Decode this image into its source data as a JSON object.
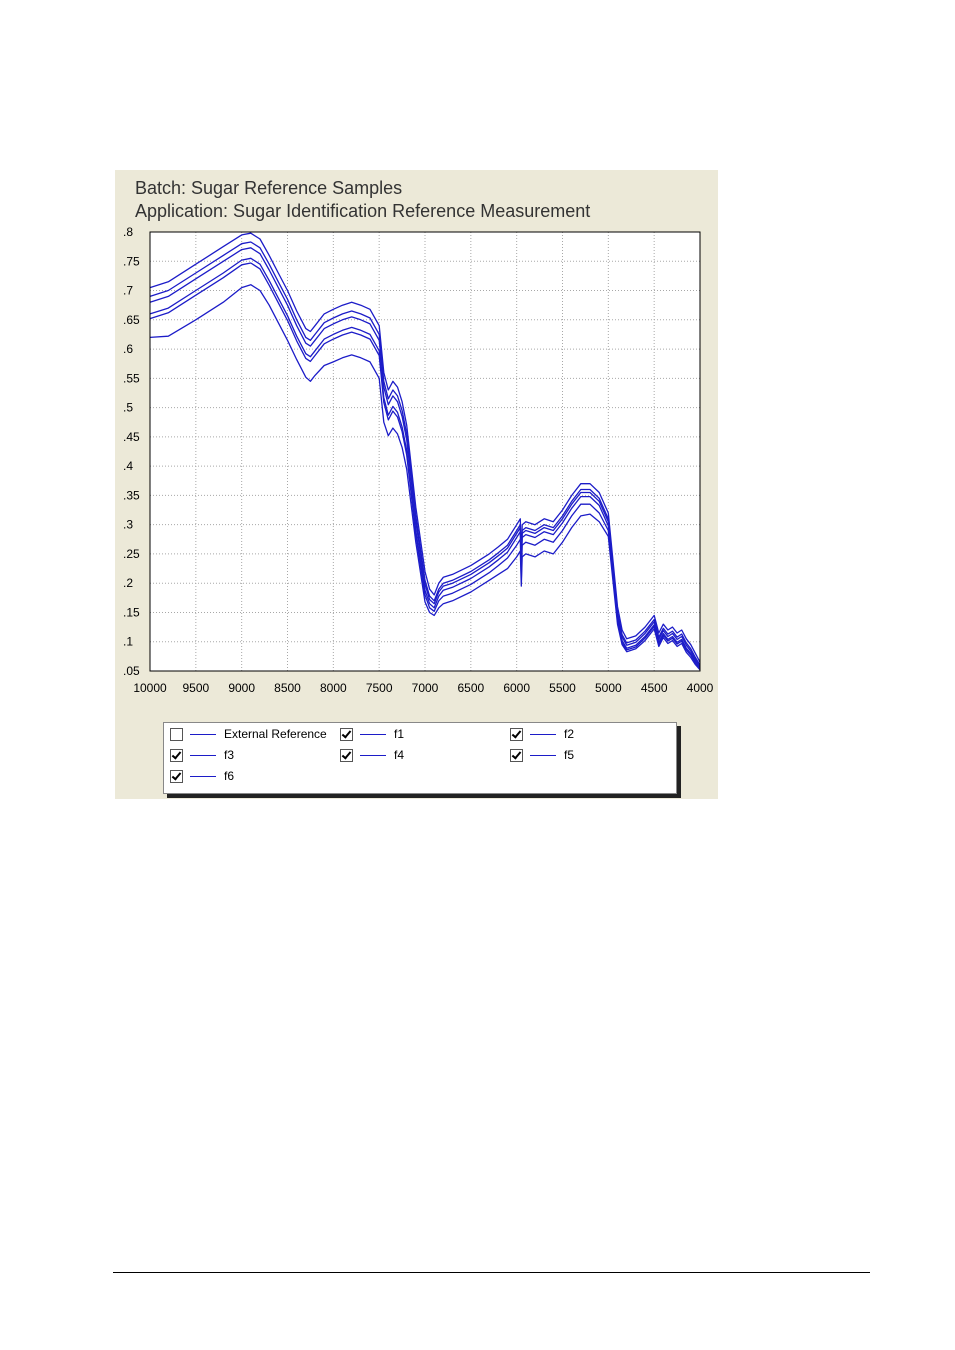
{
  "header": {
    "batch_line": "Batch: Sugar Reference Samples",
    "application_line": "Application: Sugar Identification Reference Measurement"
  },
  "colors": {
    "series": "#1c1cc8",
    "grid": "#a8a8a8",
    "panel_bg": "#ece9d8"
  },
  "chart_data": {
    "type": "line",
    "xlim": [
      10000,
      4000
    ],
    "ylim": [
      0.05,
      0.8
    ],
    "x_ticks": [
      10000,
      9500,
      9000,
      8500,
      8000,
      7500,
      7000,
      6500,
      6000,
      5500,
      5000,
      4500,
      4000
    ],
    "y_ticks": [
      0.8,
      0.75,
      0.7,
      0.65,
      0.6,
      0.55,
      0.5,
      0.45,
      0.4,
      0.35,
      0.3,
      0.25,
      0.2,
      0.15,
      0.1,
      0.05
    ],
    "y_tick_labels": [
      ".8",
      ".75",
      ".7",
      ".65",
      ".6",
      ".55",
      ".5",
      ".45",
      ".4",
      ".35",
      ".3",
      ".25",
      ".2",
      ".15",
      ".1",
      ".05"
    ],
    "x_tick_labels": [
      "10000",
      "9500",
      "9000",
      "8500",
      "8000",
      "7500",
      "7000",
      "6500",
      "6000",
      "5500",
      "5000",
      "4500",
      "4000"
    ],
    "grid": true,
    "legend_placement": "bottom",
    "x": [
      10000,
      9800,
      9500,
      9200,
      9000,
      8900,
      8800,
      8700,
      8600,
      8500,
      8400,
      8300,
      8250,
      8200,
      8100,
      8000,
      7900,
      7800,
      7700,
      7600,
      7500,
      7450,
      7400,
      7350,
      7300,
      7250,
      7200,
      7100,
      7000,
      6950,
      6900,
      6850,
      6800,
      6700,
      6500,
      6300,
      6200,
      6100,
      6000,
      5960,
      5950,
      5940,
      5900,
      5800,
      5700,
      5600,
      5500,
      5400,
      5300,
      5200,
      5100,
      5000,
      4950,
      4900,
      4850,
      4800,
      4700,
      4600,
      4500,
      4450,
      4400,
      4350,
      4300,
      4250,
      4200,
      4150,
      4100,
      4050,
      4000
    ],
    "series": [
      {
        "name": "f1",
        "values": [
          0.705,
          0.715,
          0.745,
          0.775,
          0.795,
          0.798,
          0.788,
          0.76,
          0.73,
          0.7,
          0.665,
          0.635,
          0.63,
          0.64,
          0.66,
          0.668,
          0.675,
          0.68,
          0.675,
          0.668,
          0.64,
          0.56,
          0.53,
          0.545,
          0.535,
          0.51,
          0.47,
          0.33,
          0.22,
          0.19,
          0.18,
          0.2,
          0.21,
          0.215,
          0.23,
          0.25,
          0.262,
          0.275,
          0.3,
          0.31,
          0.24,
          0.3,
          0.305,
          0.3,
          0.31,
          0.305,
          0.325,
          0.35,
          0.37,
          0.37,
          0.355,
          0.32,
          0.24,
          0.16,
          0.12,
          0.105,
          0.11,
          0.125,
          0.145,
          0.115,
          0.13,
          0.12,
          0.125,
          0.115,
          0.12,
          0.105,
          0.095,
          0.08,
          0.065
        ]
      },
      {
        "name": "f2",
        "values": [
          0.69,
          0.7,
          0.73,
          0.76,
          0.78,
          0.783,
          0.773,
          0.745,
          0.715,
          0.685,
          0.65,
          0.62,
          0.615,
          0.625,
          0.645,
          0.653,
          0.66,
          0.665,
          0.66,
          0.653,
          0.625,
          0.545,
          0.515,
          0.53,
          0.52,
          0.495,
          0.455,
          0.315,
          0.205,
          0.178,
          0.17,
          0.19,
          0.2,
          0.205,
          0.22,
          0.24,
          0.252,
          0.265,
          0.29,
          0.3,
          0.23,
          0.29,
          0.295,
          0.29,
          0.3,
          0.295,
          0.315,
          0.34,
          0.36,
          0.36,
          0.345,
          0.31,
          0.23,
          0.15,
          0.112,
          0.098,
          0.103,
          0.118,
          0.138,
          0.108,
          0.123,
          0.113,
          0.118,
          0.108,
          0.113,
          0.098,
          0.088,
          0.073,
          0.06
        ]
      },
      {
        "name": "f3",
        "values": [
          0.68,
          0.69,
          0.72,
          0.75,
          0.77,
          0.773,
          0.763,
          0.735,
          0.705,
          0.675,
          0.64,
          0.61,
          0.605,
          0.615,
          0.635,
          0.643,
          0.65,
          0.655,
          0.65,
          0.643,
          0.615,
          0.535,
          0.505,
          0.52,
          0.51,
          0.485,
          0.445,
          0.305,
          0.198,
          0.172,
          0.165,
          0.185,
          0.195,
          0.2,
          0.215,
          0.235,
          0.247,
          0.26,
          0.285,
          0.295,
          0.225,
          0.285,
          0.29,
          0.285,
          0.295,
          0.29,
          0.31,
          0.335,
          0.355,
          0.355,
          0.34,
          0.305,
          0.225,
          0.145,
          0.108,
          0.094,
          0.099,
          0.114,
          0.134,
          0.104,
          0.119,
          0.109,
          0.114,
          0.104,
          0.109,
          0.094,
          0.084,
          0.07,
          0.058
        ]
      },
      {
        "name": "f4",
        "values": [
          0.66,
          0.67,
          0.7,
          0.73,
          0.752,
          0.755,
          0.745,
          0.717,
          0.687,
          0.657,
          0.622,
          0.592,
          0.587,
          0.597,
          0.617,
          0.625,
          0.632,
          0.637,
          0.632,
          0.625,
          0.597,
          0.517,
          0.487,
          0.502,
          0.492,
          0.467,
          0.427,
          0.29,
          0.188,
          0.165,
          0.158,
          0.178,
          0.188,
          0.193,
          0.208,
          0.228,
          0.24,
          0.253,
          0.278,
          0.288,
          0.218,
          0.278,
          0.283,
          0.278,
          0.288,
          0.283,
          0.303,
          0.328,
          0.348,
          0.348,
          0.333,
          0.298,
          0.218,
          0.138,
          0.102,
          0.089,
          0.094,
          0.109,
          0.129,
          0.099,
          0.114,
          0.104,
          0.109,
          0.099,
          0.104,
          0.089,
          0.08,
          0.067,
          0.056
        ]
      },
      {
        "name": "f5",
        "values": [
          0.652,
          0.662,
          0.692,
          0.722,
          0.744,
          0.747,
          0.737,
          0.709,
          0.679,
          0.649,
          0.614,
          0.584,
          0.579,
          0.589,
          0.609,
          0.617,
          0.624,
          0.629,
          0.624,
          0.617,
          0.589,
          0.509,
          0.479,
          0.494,
          0.484,
          0.459,
          0.419,
          0.283,
          0.18,
          0.158,
          0.152,
          0.17,
          0.178,
          0.183,
          0.198,
          0.218,
          0.23,
          0.243,
          0.265,
          0.275,
          0.205,
          0.265,
          0.27,
          0.265,
          0.275,
          0.27,
          0.29,
          0.315,
          0.335,
          0.335,
          0.32,
          0.29,
          0.212,
          0.135,
          0.098,
          0.086,
          0.091,
          0.106,
          0.126,
          0.096,
          0.111,
          0.101,
          0.106,
          0.096,
          0.101,
          0.086,
          0.077,
          0.064,
          0.054
        ]
      },
      {
        "name": "f6",
        "values": [
          0.62,
          0.622,
          0.65,
          0.68,
          0.705,
          0.71,
          0.7,
          0.675,
          0.645,
          0.615,
          0.582,
          0.552,
          0.545,
          0.555,
          0.572,
          0.578,
          0.585,
          0.59,
          0.585,
          0.578,
          0.55,
          0.475,
          0.452,
          0.465,
          0.455,
          0.432,
          0.395,
          0.27,
          0.168,
          0.15,
          0.145,
          0.158,
          0.165,
          0.17,
          0.185,
          0.205,
          0.215,
          0.225,
          0.245,
          0.255,
          0.195,
          0.245,
          0.25,
          0.245,
          0.255,
          0.25,
          0.27,
          0.295,
          0.315,
          0.318,
          0.305,
          0.28,
          0.205,
          0.13,
          0.095,
          0.083,
          0.088,
          0.102,
          0.122,
          0.092,
          0.107,
          0.097,
          0.102,
          0.092,
          0.097,
          0.082,
          0.073,
          0.061,
          0.052
        ]
      }
    ]
  },
  "legend": {
    "items": [
      {
        "label": "External Reference",
        "checked": false
      },
      {
        "label": "f1",
        "checked": true
      },
      {
        "label": "f2",
        "checked": true
      },
      {
        "label": "f3",
        "checked": true
      },
      {
        "label": "f4",
        "checked": true
      },
      {
        "label": "f5",
        "checked": true
      },
      {
        "label": "f6",
        "checked": true
      }
    ]
  }
}
